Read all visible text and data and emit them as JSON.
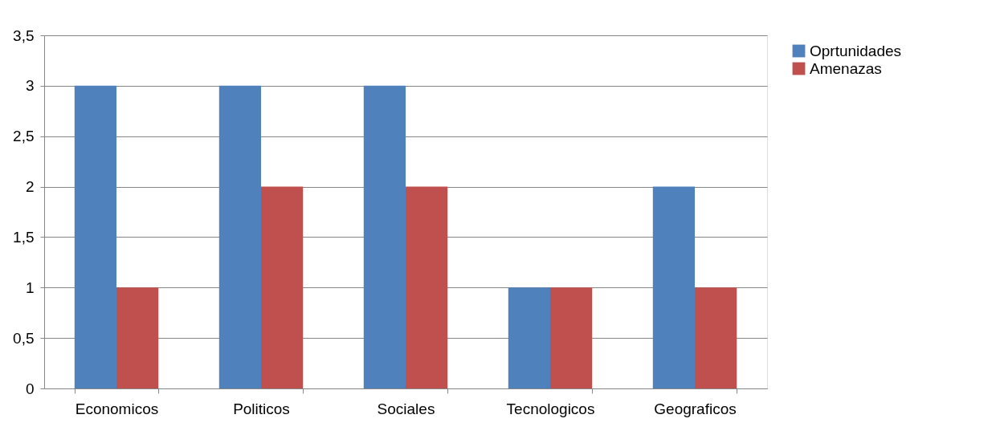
{
  "chart_data": {
    "type": "bar",
    "categories": [
      "Economicos",
      "Politicos",
      "Sociales",
      "Tecnologicos",
      "Geograficos"
    ],
    "series": [
      {
        "name": "Oprtunidades",
        "color": "#4f81bd",
        "values": [
          3,
          3,
          3,
          1,
          2
        ]
      },
      {
        "name": "Amenazas",
        "color": "#c0504d",
        "values": [
          1,
          2,
          2,
          1,
          1
        ]
      }
    ],
    "ylim": [
      0,
      3.5
    ],
    "yticks": [
      0,
      {
        "value": 0.5,
        "label": "0,5"
      },
      1,
      {
        "value": 1.5,
        "label": "1,5"
      },
      2,
      {
        "value": 2.5,
        "label": "2,5"
      },
      3,
      {
        "value": 3.5,
        "label": "3,5"
      }
    ],
    "grid": "y",
    "legend": "right"
  }
}
